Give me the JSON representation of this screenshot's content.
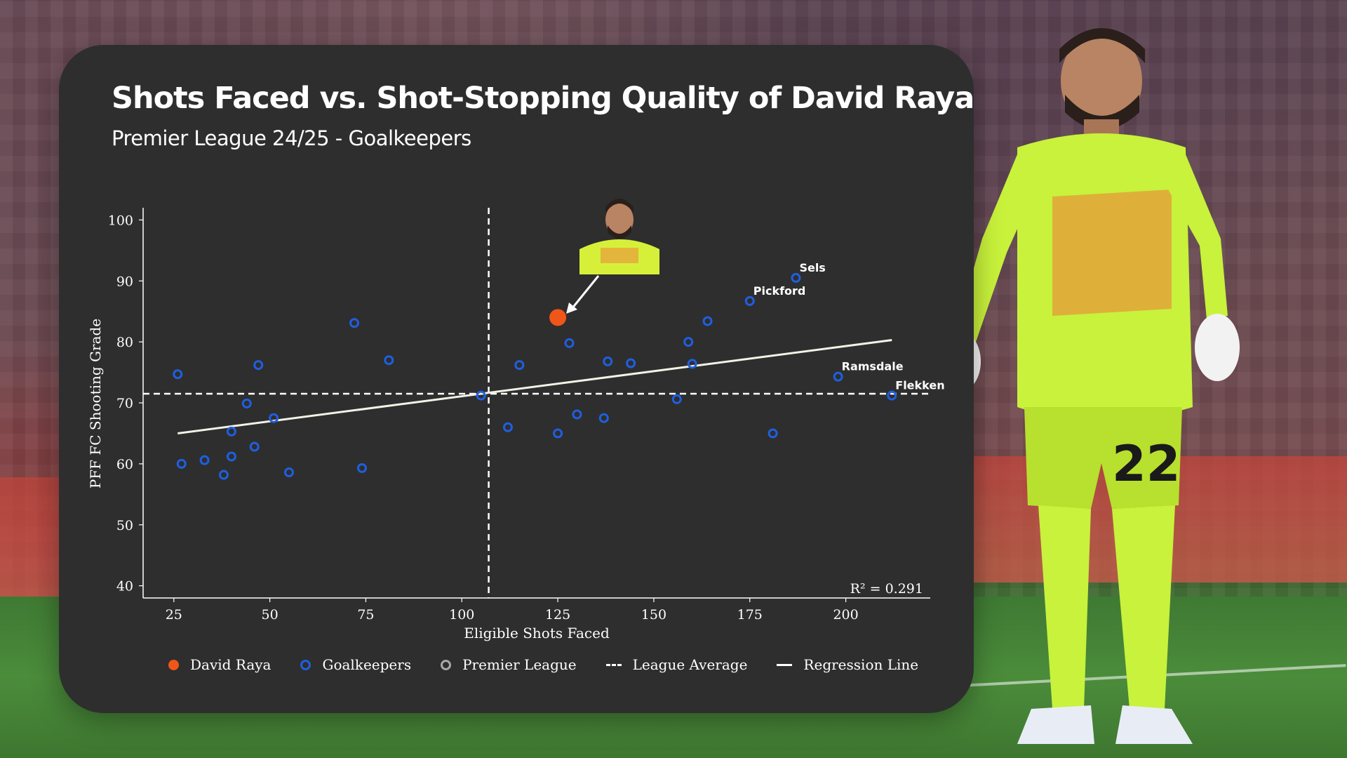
{
  "header": {
    "title": "Shots Faced vs. Shot-Stopping Quality of David Raya",
    "subtitle": "Premier League 24/25 - Goalkeepers"
  },
  "colors": {
    "highlight": "#f0561a",
    "goalkeepers": "#1f5fe0",
    "premier_league": "#a8a8a8",
    "card_background": "#2e2e2e"
  },
  "chart_data": {
    "type": "scatter",
    "title": "Shots Faced vs. Shot-Stopping Quality of David Raya",
    "subtitle": "Premier League 24/25 - Goalkeepers",
    "xlabel": "Eligible Shots Faced",
    "ylabel": "PFF FC Shooting Grade",
    "xlim": [
      17,
      222
    ],
    "ylim": [
      38,
      102
    ],
    "xticks": [
      25,
      50,
      75,
      100,
      125,
      150,
      175,
      200
    ],
    "yticks": [
      40,
      50,
      60,
      70,
      80,
      90,
      100
    ],
    "grid": false,
    "league_average": {
      "x": 107,
      "y": 71.5
    },
    "regression_line": {
      "x": [
        26,
        212
      ],
      "y": [
        65,
        80.3
      ]
    },
    "r2_label": "R² = 0.291",
    "highlight": {
      "name": "David Raya",
      "x": 125,
      "y": 84
    },
    "series": [
      {
        "name": "Goalkeepers",
        "points": [
          {
            "x": 26,
            "y": 74.7,
            "label": ""
          },
          {
            "x": 27,
            "y": 60,
            "label": ""
          },
          {
            "x": 33,
            "y": 60.6,
            "label": ""
          },
          {
            "x": 38,
            "y": 58.2,
            "label": ""
          },
          {
            "x": 40,
            "y": 61.2,
            "label": ""
          },
          {
            "x": 40,
            "y": 65.3,
            "label": ""
          },
          {
            "x": 44,
            "y": 69.9,
            "label": ""
          },
          {
            "x": 46,
            "y": 62.8,
            "label": ""
          },
          {
            "x": 47,
            "y": 76.2,
            "label": ""
          },
          {
            "x": 51,
            "y": 67.5,
            "label": ""
          },
          {
            "x": 55,
            "y": 58.6,
            "label": ""
          },
          {
            "x": 72,
            "y": 83.1,
            "label": ""
          },
          {
            "x": 74,
            "y": 59.3,
            "label": ""
          },
          {
            "x": 81,
            "y": 77,
            "label": ""
          },
          {
            "x": 105,
            "y": 71.2,
            "label": ""
          },
          {
            "x": 112,
            "y": 66,
            "label": ""
          },
          {
            "x": 115,
            "y": 76.2,
            "label": ""
          },
          {
            "x": 125,
            "y": 65,
            "label": ""
          },
          {
            "x": 128,
            "y": 79.8,
            "label": ""
          },
          {
            "x": 130,
            "y": 68.1,
            "label": ""
          },
          {
            "x": 137,
            "y": 67.5,
            "label": ""
          },
          {
            "x": 138,
            "y": 76.8,
            "label": ""
          },
          {
            "x": 144,
            "y": 76.5,
            "label": ""
          },
          {
            "x": 156,
            "y": 70.6,
            "label": ""
          },
          {
            "x": 159,
            "y": 80,
            "label": ""
          },
          {
            "x": 160,
            "y": 76.4,
            "label": ""
          },
          {
            "x": 164,
            "y": 83.4,
            "label": ""
          },
          {
            "x": 175,
            "y": 86.7,
            "label": "Pickford"
          },
          {
            "x": 181,
            "y": 65,
            "label": ""
          },
          {
            "x": 187,
            "y": 90.5,
            "label": "Sels"
          },
          {
            "x": 198,
            "y": 74.3,
            "label": "Ramsdale"
          },
          {
            "x": 212,
            "y": 71.2,
            "label": "Flekken"
          }
        ]
      }
    ]
  },
  "legend": {
    "highlight": "David Raya",
    "goalkeepers": "Goalkeepers",
    "premier_league": "Premier League",
    "league_average": "League Average",
    "regression_line": "Regression Line"
  }
}
